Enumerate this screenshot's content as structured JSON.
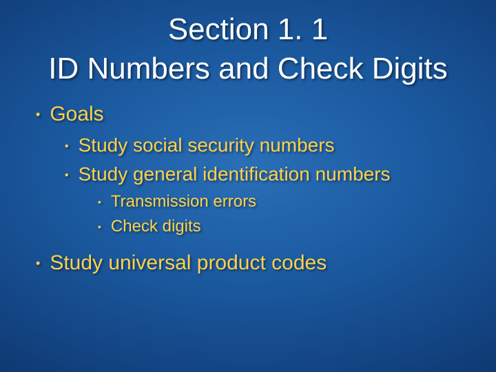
{
  "title": {
    "line1": "Section 1. 1",
    "line2": "ID Numbers and Check Digits",
    "color": "#ffffff",
    "fontsize": 44
  },
  "body": {
    "bullet_color": "#ffd24a",
    "text_color": "#ffd24a",
    "items": [
      {
        "level": 1,
        "text": "Goals"
      },
      {
        "level": 2,
        "text": "Study social security numbers"
      },
      {
        "level": 2,
        "text": "Study general identification numbers"
      },
      {
        "level": 3,
        "text": "Transmission errors"
      },
      {
        "level": 3,
        "text": "Check digits"
      },
      {
        "level": 1,
        "text": "Study universal product codes",
        "spaced": true
      }
    ],
    "fontsize_l1": 30,
    "fontsize_l2": 28,
    "fontsize_l3": 24
  },
  "background": {
    "type": "radial-gradient",
    "center_color": "#2a6fb8",
    "edge_color": "#071f47"
  },
  "bullet_glyph": "•"
}
